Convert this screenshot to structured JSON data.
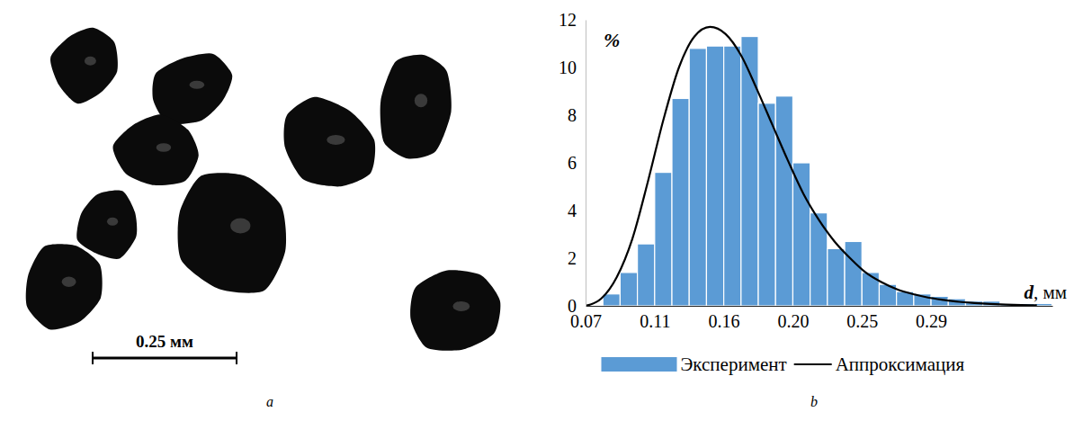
{
  "image_panel": {
    "label": "a",
    "scale_bar": "0.25 мм"
  },
  "chart_data": {
    "type": "histogram",
    "panel_label": "b",
    "x_label": "d, мм",
    "y_label": "%",
    "bins": [
      0.0811,
      0.0922,
      0.1033,
      0.1144,
      0.1255,
      0.1366,
      0.1477,
      0.1588,
      0.1699,
      0.181,
      0.1921,
      0.2032,
      0.2143,
      0.2254,
      0.2365,
      0.2476,
      0.2587,
      0.2698,
      0.2809,
      0.292,
      0.3031,
      0.3142,
      0.3253,
      0.3364,
      0.3475,
      0.3586,
      0.3697
    ],
    "series": [
      {
        "name": "Эксперимент",
        "type": "bar",
        "color": "#5b9bd5",
        "values": [
          0.5,
          1.4,
          2.6,
          5.6,
          8.7,
          10.8,
          10.9,
          10.9,
          11.3,
          8.5,
          8.8,
          6.0,
          3.9,
          2.4,
          2.7,
          1.4,
          0.9,
          0.6,
          0.5,
          0.4,
          0.3,
          0.2,
          0.2,
          0.1,
          0.1,
          0.1
        ]
      },
      {
        "name": "Аппроксимация",
        "type": "line",
        "color": "#000000",
        "x": [
          0.07,
          0.08,
          0.09,
          0.1,
          0.11,
          0.12,
          0.13,
          0.14,
          0.15,
          0.16,
          0.17,
          0.18,
          0.19,
          0.2,
          0.21,
          0.22,
          0.23,
          0.24,
          0.25,
          0.26,
          0.27,
          0.28,
          0.29,
          0.3,
          0.31,
          0.32,
          0.33,
          0.34,
          0.35,
          0.36
        ],
        "values": [
          0,
          0.3,
          1.2,
          2.8,
          5.2,
          7.8,
          10.0,
          11.3,
          11.7,
          11.4,
          10.5,
          9.1,
          7.6,
          6.1,
          4.7,
          3.6,
          2.7,
          2.0,
          1.4,
          1.0,
          0.7,
          0.5,
          0.35,
          0.25,
          0.17,
          0.12,
          0.08,
          0.05,
          0.03,
          0.02
        ]
      }
    ],
    "xlim": [
      0.07,
      0.37
    ],
    "xticks": [
      0.07,
      {
        "value": 0.1144,
        "label": "0.11"
      },
      {
        "value": 0.1588,
        "label": "0.16"
      },
      {
        "value": 0.2032,
        "label": "0.20"
      },
      {
        "value": 0.2476,
        "label": "0.25"
      },
      {
        "value": 0.292,
        "label": "0.29"
      }
    ],
    "ylim": [
      0,
      12
    ],
    "yticks": [
      0,
      2,
      4,
      6,
      8,
      10,
      12
    ],
    "grid": false,
    "legend": "bottom"
  }
}
